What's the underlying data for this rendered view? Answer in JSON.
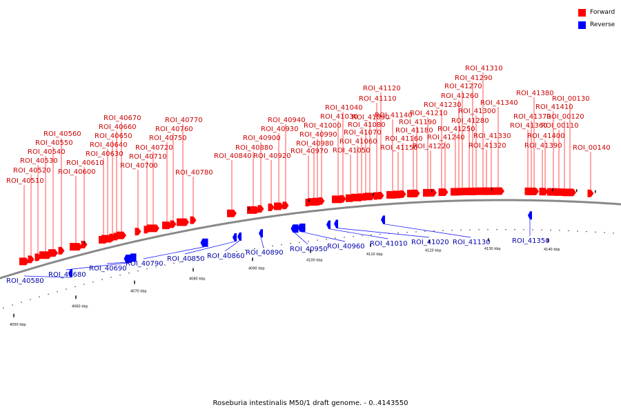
{
  "caption": "Roseburia intestinalis M50/1 draft genome. - 0..4143550",
  "legend": [
    {
      "label": "Forward",
      "color": "#ff0000"
    },
    {
      "label": "Reverse",
      "color": "#0000ff"
    }
  ],
  "colors": {
    "forward": "#ff0000",
    "forward_label": "#cc0000",
    "reverse": "#0000ff",
    "reverse_label": "#0000aa",
    "backbone": "#888888"
  },
  "ticks": [
    "4050 kbp",
    "4060 kbp",
    "4070 kbp",
    "4080 kbp",
    "4090 kbp",
    "4100 kbp",
    "4110 kbp",
    "4120 kbp",
    "4130 kbp",
    "4140 kbp"
  ],
  "forward_labels": [
    "ROI_40510",
    "ROI_40520",
    "ROI_40530",
    "ROI_40540",
    "ROI_40550",
    "ROI_40560",
    "ROI_40600",
    "ROI_40610",
    "ROI_40630",
    "ROI_40640",
    "ROI_40650",
    "ROI_40660",
    "ROI_40670",
    "ROI_40700",
    "ROI_40710",
    "ROI_40720",
    "ROI_40750",
    "ROI_40760",
    "ROI_40770",
    "ROI_40780",
    "ROI_40840",
    "ROI_40880",
    "ROI_40900",
    "ROI_40920",
    "ROI_40930",
    "ROI_40940",
    "ROI_40970",
    "ROI_40980",
    "ROI_40990",
    "ROI_41000",
    "ROI_41030",
    "ROI_41040",
    "ROI_41050",
    "ROI_41060",
    "ROI_41070",
    "ROI_41080",
    "ROI_41090",
    "ROI_41110",
    "ROI_41120",
    "ROI_41140",
    "ROI_41150",
    "ROI_41160",
    "ROI_41180",
    "ROI_41190",
    "ROI_41210",
    "ROI_41220",
    "ROI_41230",
    "ROI_41240",
    "ROI_41250",
    "ROI_41260",
    "ROI_41270",
    "ROI_41280",
    "ROI_41290",
    "ROI_41300",
    "ROI_41310",
    "ROI_41320",
    "ROI_41330",
    "ROI_41340",
    "ROI_41360",
    "ROI_41370",
    "ROI_41380",
    "ROI_41390",
    "ROI_41400",
    "ROI_41410",
    "ROI_00110",
    "ROI_00120",
    "ROI_00130",
    "ROI_00140"
  ],
  "reverse_labels": [
    "ROI_40580",
    "ROI_40680",
    "ROI_40690",
    "ROI_40790",
    "ROI_40850",
    "ROI_40860",
    "ROI_40890",
    "ROI_40950",
    "ROI_40960",
    "ROI_41010",
    "ROI_41020",
    "ROI_41130",
    "ROI_41350"
  ]
}
